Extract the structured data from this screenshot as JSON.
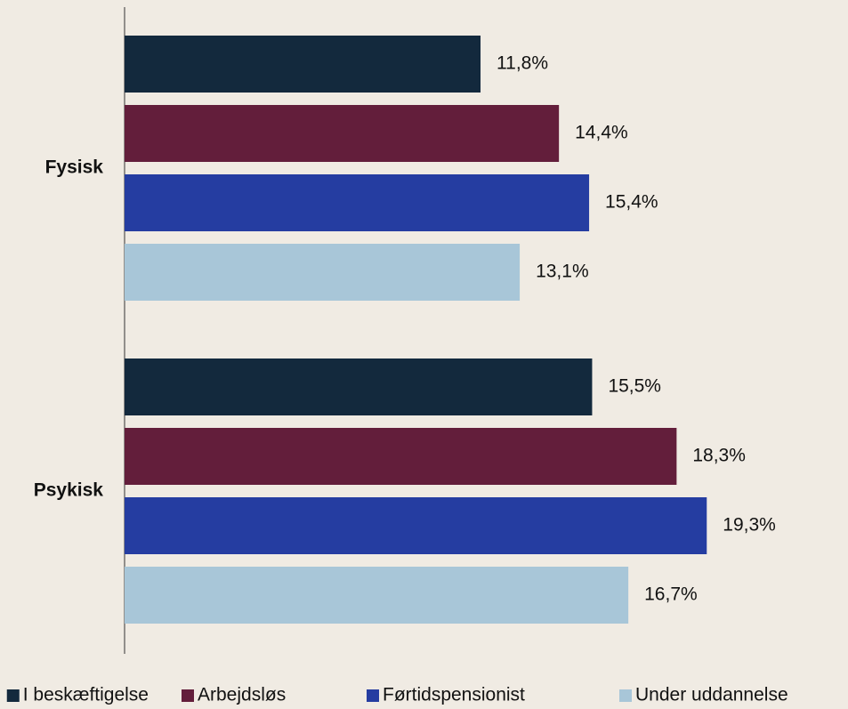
{
  "chart_data": {
    "type": "bar",
    "orientation": "horizontal",
    "categories": [
      "Fysisk",
      "Psykisk"
    ],
    "series": [
      {
        "name": "I beskæftigelse",
        "color": "#13293d",
        "values": [
          11.8,
          15.5
        ],
        "value_labels": [
          "11,8%",
          "15,5%"
        ]
      },
      {
        "name": "Arbejdsløs",
        "color": "#631e3b",
        "values": [
          14.4,
          18.3
        ],
        "value_labels": [
          "14,4%",
          "18,3%"
        ]
      },
      {
        "name": "Førtidspensionist",
        "color": "#253da1",
        "values": [
          15.4,
          19.3
        ],
        "value_labels": [
          "15,4%",
          "19,3%"
        ]
      },
      {
        "name": "Under uddannelse",
        "color": "#a8c6d8",
        "values": [
          13.1,
          16.7
        ],
        "value_labels": [
          "13,1%",
          "16,7%"
        ]
      }
    ],
    "legend": "bottom"
  }
}
